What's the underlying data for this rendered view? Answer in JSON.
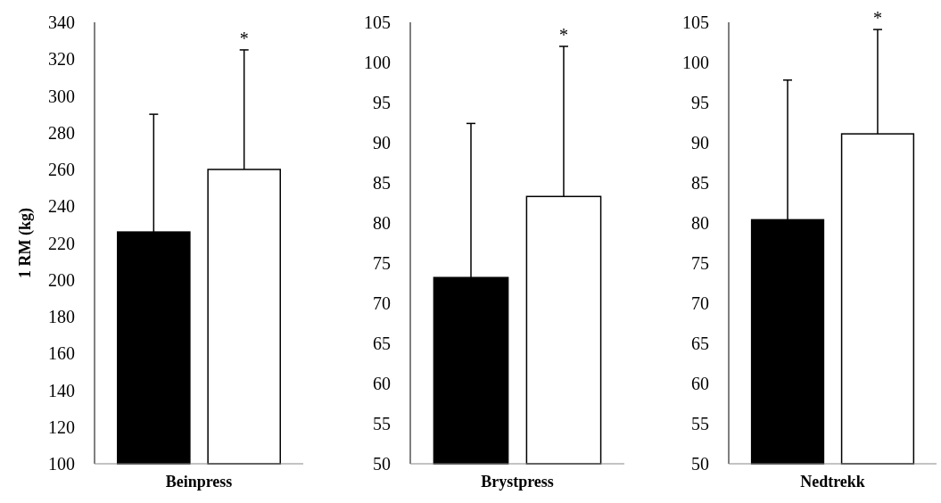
{
  "chart_data": [
    {
      "type": "bar",
      "ylabel": "1 RM (kg)",
      "categories": [
        "Beinpress"
      ],
      "ylim": [
        100,
        340
      ],
      "yticks": [
        100,
        120,
        140,
        160,
        180,
        200,
        220,
        240,
        260,
        280,
        300,
        320,
        340
      ],
      "grid": false,
      "series": [
        {
          "color": "#000000",
          "values": [
            226
          ],
          "errors": [
            [
              226,
              290
            ]
          ]
        },
        {
          "color": "#ffffff",
          "values": [
            260
          ],
          "errors": [
            [
              260,
              325
            ]
          ]
        }
      ],
      "annotations": [
        "*"
      ]
    },
    {
      "type": "bar",
      "categories": [
        "Brystpress"
      ],
      "ylim": [
        50,
        105
      ],
      "yticks": [
        50,
        55,
        60,
        65,
        70,
        75,
        80,
        85,
        90,
        95,
        100,
        105
      ],
      "grid": false,
      "series": [
        {
          "color": "#000000",
          "values": [
            73.2
          ],
          "errors": [
            [
              73.2,
              92.4
            ]
          ]
        },
        {
          "color": "#ffffff",
          "values": [
            83.3
          ],
          "errors": [
            [
              83.3,
              102
            ]
          ]
        }
      ],
      "annotations": [
        "*"
      ]
    },
    {
      "type": "bar",
      "categories": [
        "Nedtrekk"
      ],
      "ylim": [
        50,
        105
      ],
      "yticks": [
        50,
        55,
        60,
        65,
        70,
        75,
        80,
        85,
        90,
        95,
        100,
        105
      ],
      "grid": false,
      "series": [
        {
          "color": "#000000",
          "values": [
            80.4
          ],
          "errors": [
            [
              80.4,
              97.8
            ]
          ]
        },
        {
          "color": "#ffffff",
          "values": [
            91.1
          ],
          "errors": [
            [
              91.1,
              104.1
            ]
          ]
        }
      ],
      "annotations": [
        "*"
      ]
    }
  ]
}
